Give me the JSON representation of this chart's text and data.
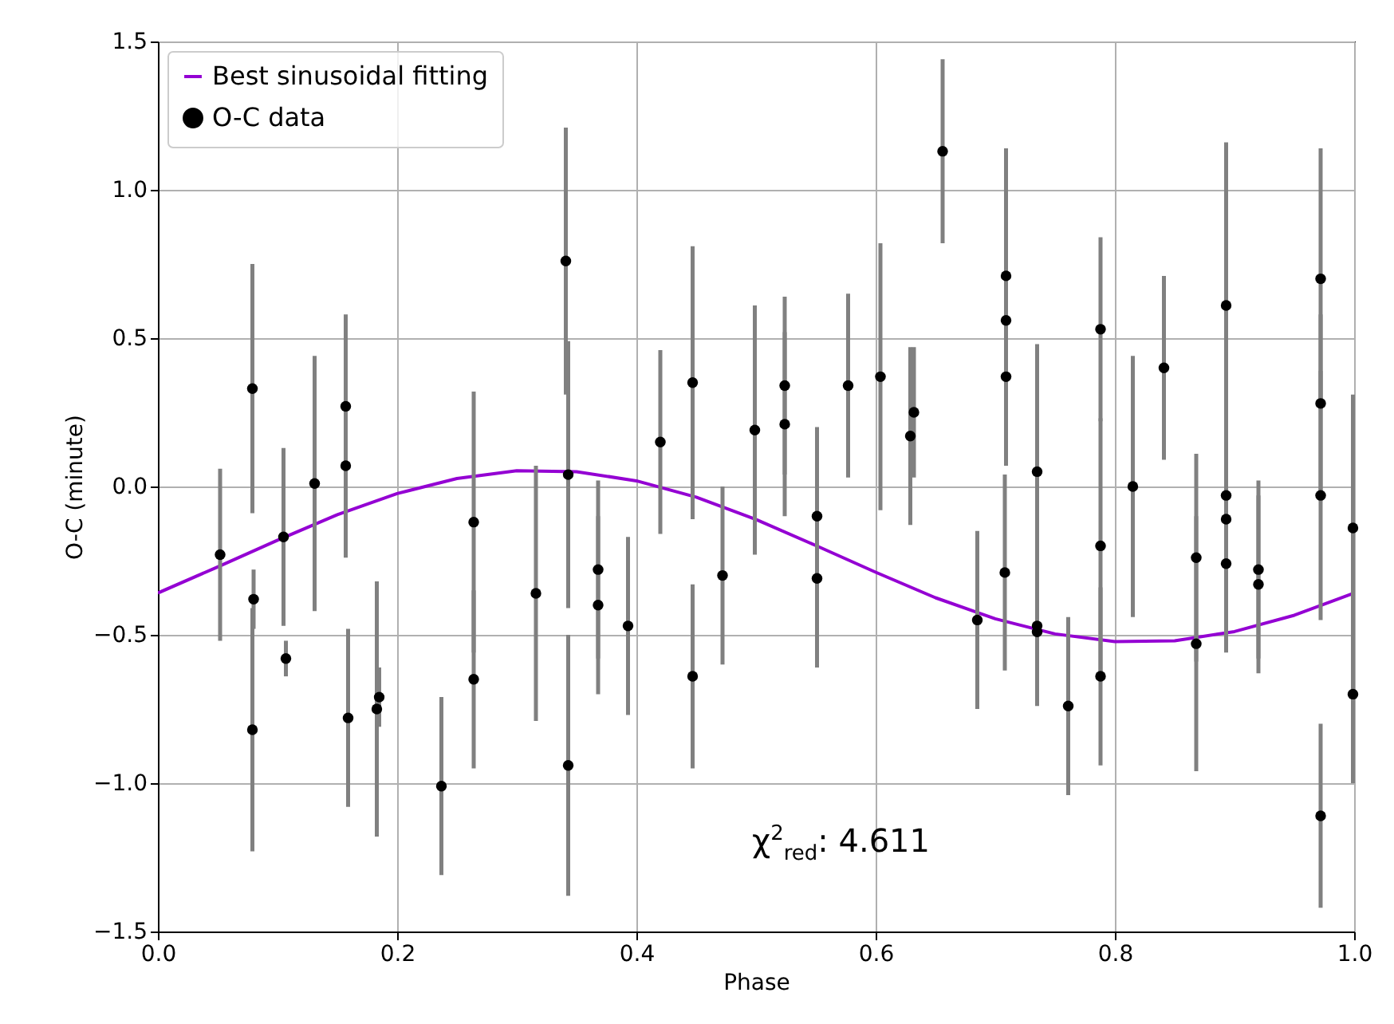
{
  "chart_data": {
    "type": "scatter",
    "xlabel": "Phase",
    "ylabel": "O-C (minute)",
    "xlim": [
      0,
      1
    ],
    "ylim": [
      -1.5,
      1.5
    ],
    "xticks": [
      {
        "value": 0,
        "label": "0.0"
      },
      {
        "value": 0.2,
        "label": "0.2"
      },
      {
        "value": 0.4,
        "label": "0.4"
      },
      {
        "value": 0.6,
        "label": "0.6"
      },
      {
        "value": 0.8,
        "label": "0.8"
      },
      {
        "value": 1,
        "label": "1.0"
      }
    ],
    "yticks": [
      {
        "value": -1.5,
        "label": "−1.5"
      },
      {
        "value": -1,
        "label": "−1.0"
      },
      {
        "value": -0.5,
        "label": "−0.5"
      },
      {
        "value": 0,
        "label": "0.0"
      },
      {
        "value": 0.5,
        "label": "0.5"
      },
      {
        "value": 1,
        "label": "1.0"
      },
      {
        "value": 1.5,
        "label": "1.5"
      }
    ],
    "grid": true,
    "legend": "top left",
    "annotations": [
      "χ$^{2}$$_{red}$: 4.611"
    ],
    "series": [
      {
        "name": "Best sinusoidal fitting",
        "type": "line",
        "color": "#9400d3",
        "x": [
          0,
          0.05,
          0.1,
          0.15,
          0.2,
          0.25,
          0.3,
          0.35,
          0.4,
          0.45,
          0.5,
          0.55,
          0.6,
          0.65,
          0.7,
          0.75,
          0.8,
          0.85,
          0.9,
          0.95,
          1
        ],
        "values": [
          -0.359,
          -0.271,
          -0.181,
          -0.095,
          -0.024,
          0.027,
          0.053,
          0.05,
          0.019,
          -0.036,
          -0.111,
          -0.199,
          -0.289,
          -0.375,
          -0.446,
          -0.497,
          -0.523,
          -0.52,
          -0.489,
          -0.434,
          -0.359
        ]
      },
      {
        "name": "O-C data",
        "marker": "circle",
        "color": "#000000",
        "x": [
          0.052,
          0.079,
          0.079,
          0.08,
          0.105,
          0.107,
          0.131,
          0.157,
          0.157,
          0.159,
          0.183,
          0.185,
          0.237,
          0.264,
          0.264,
          0.316,
          0.341,
          0.343,
          0.343,
          0.368,
          0.368,
          0.393,
          0.42,
          0.447,
          0.447,
          0.472,
          0.499,
          0.524,
          0.524,
          0.551,
          0.551,
          0.577,
          0.604,
          0.629,
          0.632,
          0.656,
          0.685,
          0.709,
          0.709,
          0.709,
          0.708,
          0.735,
          0.735,
          0.735,
          0.761,
          0.788,
          0.788,
          0.788,
          0.815,
          0.841,
          0.868,
          0.868,
          0.893,
          0.893,
          0.893,
          0.893,
          0.92,
          0.92,
          0.972,
          0.972,
          0.972,
          0.972,
          0.999,
          0.999
        ],
        "values": [
          -0.23,
          0.33,
          -0.82,
          -0.38,
          -0.17,
          -0.58,
          0.01,
          0.27,
          0.07,
          -0.78,
          -0.75,
          -0.71,
          -1.01,
          -0.12,
          -0.65,
          -0.36,
          0.76,
          0.04,
          -0.94,
          -0.28,
          -0.4,
          -0.47,
          0.15,
          0.35,
          -0.64,
          -0.3,
          0.19,
          0.34,
          0.21,
          -0.1,
          -0.31,
          0.34,
          0.37,
          0.17,
          0.25,
          1.13,
          -0.45,
          0.71,
          0.56,
          0.37,
          -0.29,
          0.05,
          -0.47,
          -0.49,
          -0.74,
          0.53,
          -0.2,
          -0.64,
          0.0,
          0.4,
          -0.24,
          -0.53,
          0.61,
          -0.03,
          -0.11,
          -0.26,
          -0.28,
          -0.33,
          0.7,
          0.28,
          -0.03,
          -1.11,
          -0.14,
          -0.7
        ],
        "errors": [
          0.29,
          0.42,
          0.41,
          0.1,
          0.3,
          0.06,
          0.43,
          0.31,
          0.31,
          0.3,
          0.43,
          0.1,
          0.3,
          0.44,
          0.3,
          0.43,
          0.45,
          0.45,
          0.44,
          0.3,
          0.3,
          0.3,
          0.31,
          0.46,
          0.31,
          0.3,
          0.42,
          0.3,
          0.31,
          0.3,
          0.3,
          0.31,
          0.45,
          0.3,
          0.22,
          0.31,
          0.3,
          0.43,
          0.3,
          0.3,
          0.33,
          0.43,
          0.25,
          0.25,
          0.3,
          0.31,
          0.43,
          0.3,
          0.44,
          0.31,
          0.35,
          0.43,
          0.55,
          0.3,
          0.3,
          0.3,
          0.3,
          0.3,
          0.44,
          0.3,
          0.42,
          0.31,
          0.45,
          0.3
        ]
      }
    ]
  }
}
